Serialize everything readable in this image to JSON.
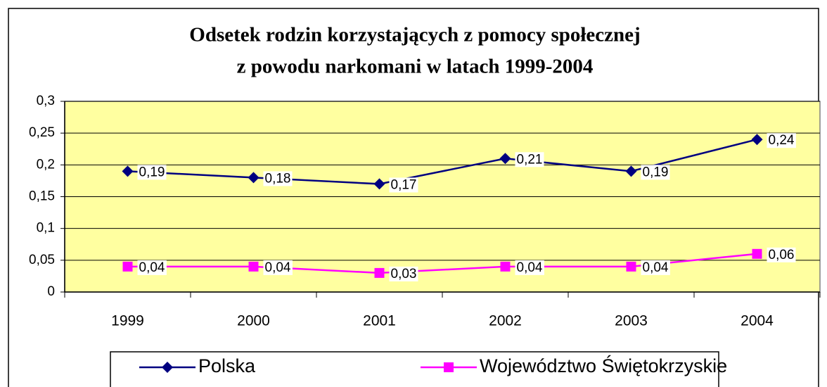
{
  "chart_data": {
    "type": "line",
    "title": [
      "Odsetek rodzin korzystających z pomocy społecznej",
      "z powodu narkomani w latach 1999-2004"
    ],
    "categories": [
      "1999",
      "2000",
      "2001",
      "2002",
      "2003",
      "2004"
    ],
    "series": [
      {
        "name": "Polska",
        "color": "#000080",
        "values": [
          0.19,
          0.18,
          0.17,
          0.21,
          0.19,
          0.24
        ],
        "value_labels": [
          "0,19",
          "0,18",
          "0,17",
          "0,21",
          "0,19",
          "0,24"
        ]
      },
      {
        "name": "Województwo Świętokrzyskie",
        "color": "#ff00ff",
        "values": [
          0.04,
          0.04,
          0.03,
          0.04,
          0.04,
          0.06
        ],
        "value_labels": [
          "0,04",
          "0,04",
          "0,03",
          "0,04",
          "0,04",
          "0,06"
        ]
      }
    ],
    "ylim": [
      0,
      0.3
    ],
    "yticks": [
      0,
      {
        "value": 0.05,
        "label": "0,05"
      },
      {
        "value": 0.1,
        "label": "0,1"
      },
      {
        "value": 0.15,
        "label": "0,15"
      },
      {
        "value": 0.2,
        "label": "0,2"
      },
      {
        "value": 0.25,
        "label": "0,25"
      },
      {
        "value": 0.3,
        "label": "0,3"
      }
    ],
    "grid": true,
    "plot_background": "#ffffa0"
  }
}
